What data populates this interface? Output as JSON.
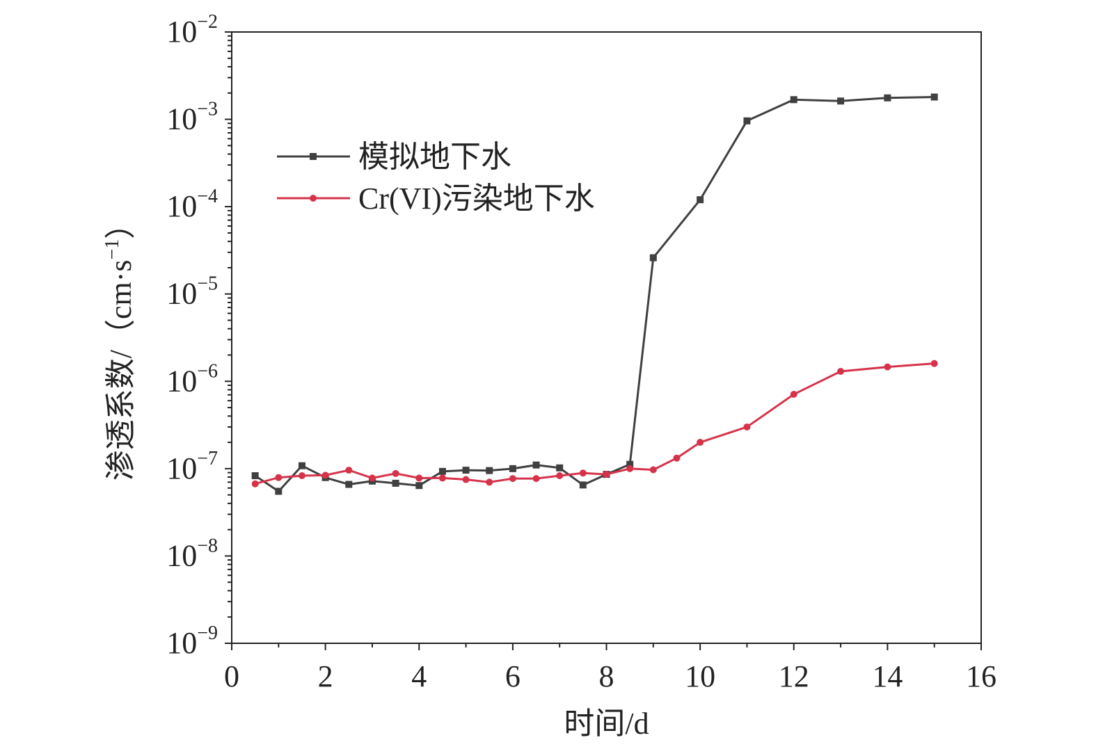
{
  "chart_data": {
    "type": "line",
    "xlabel": "时间/d",
    "ylabel": "渗透系数/（cm·s",
    "ylabel_sup": "−1",
    "ylabel_close": "）",
    "xlim": [
      0,
      16
    ],
    "ylim": [
      1e-09,
      0.01
    ],
    "yscale": "log",
    "x_ticks": [
      "0",
      "2",
      "4",
      "6",
      "8",
      "10",
      "12",
      "14",
      "16"
    ],
    "y_ticks": [
      {
        "base": "10",
        "exp": "−9"
      },
      {
        "base": "10",
        "exp": "−8"
      },
      {
        "base": "10",
        "exp": "−7"
      },
      {
        "base": "10",
        "exp": "−6"
      },
      {
        "base": "10",
        "exp": "−5"
      },
      {
        "base": "10",
        "exp": "−4"
      },
      {
        "base": "10",
        "exp": "−3"
      },
      {
        "base": "10",
        "exp": "−2"
      }
    ],
    "grid": false,
    "legend_position": "upper-left",
    "series": [
      {
        "name": "模拟地下水",
        "color": "#404040",
        "marker": "square",
        "x": [
          0.5,
          1,
          1.5,
          2,
          2.5,
          3,
          3.5,
          4,
          4.5,
          5,
          5.5,
          6,
          6.5,
          7,
          7.5,
          8,
          8.5,
          9,
          10,
          11,
          12,
          13,
          14,
          15
        ],
        "y": [
          8.3e-08,
          5.5e-08,
          1.08e-07,
          7.9e-08,
          6.6e-08,
          7.2e-08,
          6.8e-08,
          6.4e-08,
          9.3e-08,
          9.6e-08,
          9.5e-08,
          1e-07,
          1.1e-07,
          1.02e-07,
          6.5e-08,
          8.6e-08,
          1.12e-07,
          2.6e-05,
          0.00012,
          0.00096,
          0.00168,
          0.00162,
          0.00176,
          0.0018
        ]
      },
      {
        "name": "Cr(VI)污染地下水",
        "color": "#d6334a",
        "marker": "circle",
        "x": [
          0.5,
          1,
          1.5,
          2,
          2.5,
          3,
          3.5,
          4,
          4.5,
          5,
          5.5,
          6,
          6.5,
          7,
          7.5,
          8,
          8.5,
          9,
          9.5,
          10,
          11,
          12,
          13,
          14,
          15
        ],
        "y": [
          6.7e-08,
          7.9e-08,
          8.3e-08,
          8.4e-08,
          9.6e-08,
          7.8e-08,
          8.8e-08,
          7.8e-08,
          7.8e-08,
          7.5e-08,
          7e-08,
          7.7e-08,
          7.7e-08,
          8.3e-08,
          8.9e-08,
          8.6e-08,
          1e-07,
          9.7e-08,
          1.32e-07,
          2e-07,
          3e-07,
          7.1e-07,
          1.3e-06,
          1.46e-06,
          1.6e-06
        ]
      }
    ]
  }
}
